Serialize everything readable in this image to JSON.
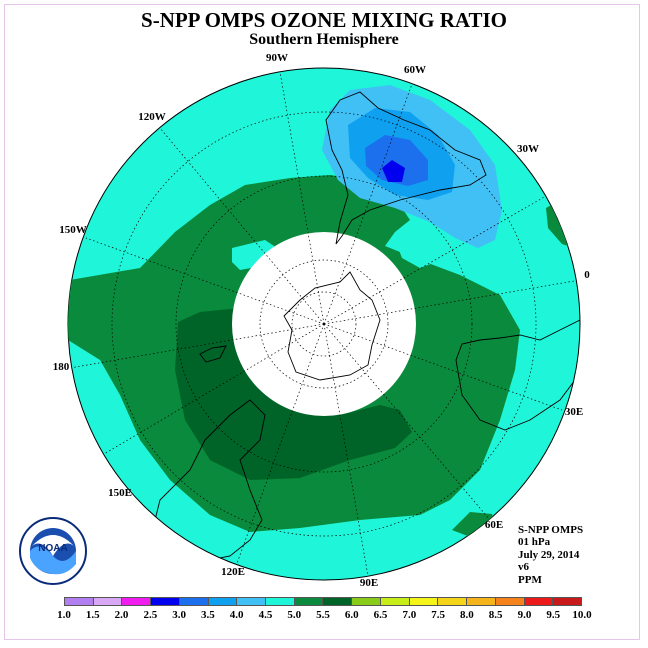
{
  "title": "S-NPP OMPS OZONE MIXING RATIO",
  "subtitle": "Southern Hemisphere",
  "longitude_labels": [
    "90W",
    "60W",
    "120W",
    "30W",
    "150W",
    "0",
    "180",
    "30E",
    "150E",
    "60E",
    "120E",
    "90E"
  ],
  "info": {
    "instrument": "S-NPP OMPS",
    "level": "01 hPa",
    "date": "July 29, 2014",
    "version": "v6",
    "units": "PPM"
  },
  "colorbar": {
    "ticks": [
      "1.0",
      "1.5",
      "2.0",
      "2.5",
      "3.0",
      "3.5",
      "4.0",
      "4.5",
      "5.0",
      "5.5",
      "6.0",
      "6.5",
      "7.0",
      "7.5",
      "8.0",
      "8.5",
      "9.0",
      "9.5",
      "10.0"
    ],
    "colors": [
      "#b27ff0",
      "#d8a8f5",
      "#f01cf0",
      "#0000ee",
      "#1c70ee",
      "#10a0f0",
      "#40c0f5",
      "#1ff5d8",
      "#0a8a3c",
      "#006428",
      "#8acc1a",
      "#c8ee1a",
      "#f5f51a",
      "#f5d51a",
      "#f5b41a",
      "#f5821a",
      "#ee1a1a",
      "#c81a1a",
      "#7a4a30"
    ]
  },
  "logo": {
    "text": "NOAA",
    "icon": "noaa-logo-icon"
  },
  "colors": {
    "ocean_teal": "#1ff5d8",
    "green_mid": "#0a8a3c",
    "green_dark": "#006428",
    "blue_light": "#40c0f5",
    "blue_mid": "#10a0f0",
    "blue_deep": "#1c70ee",
    "blue_core": "#0000ee"
  }
}
